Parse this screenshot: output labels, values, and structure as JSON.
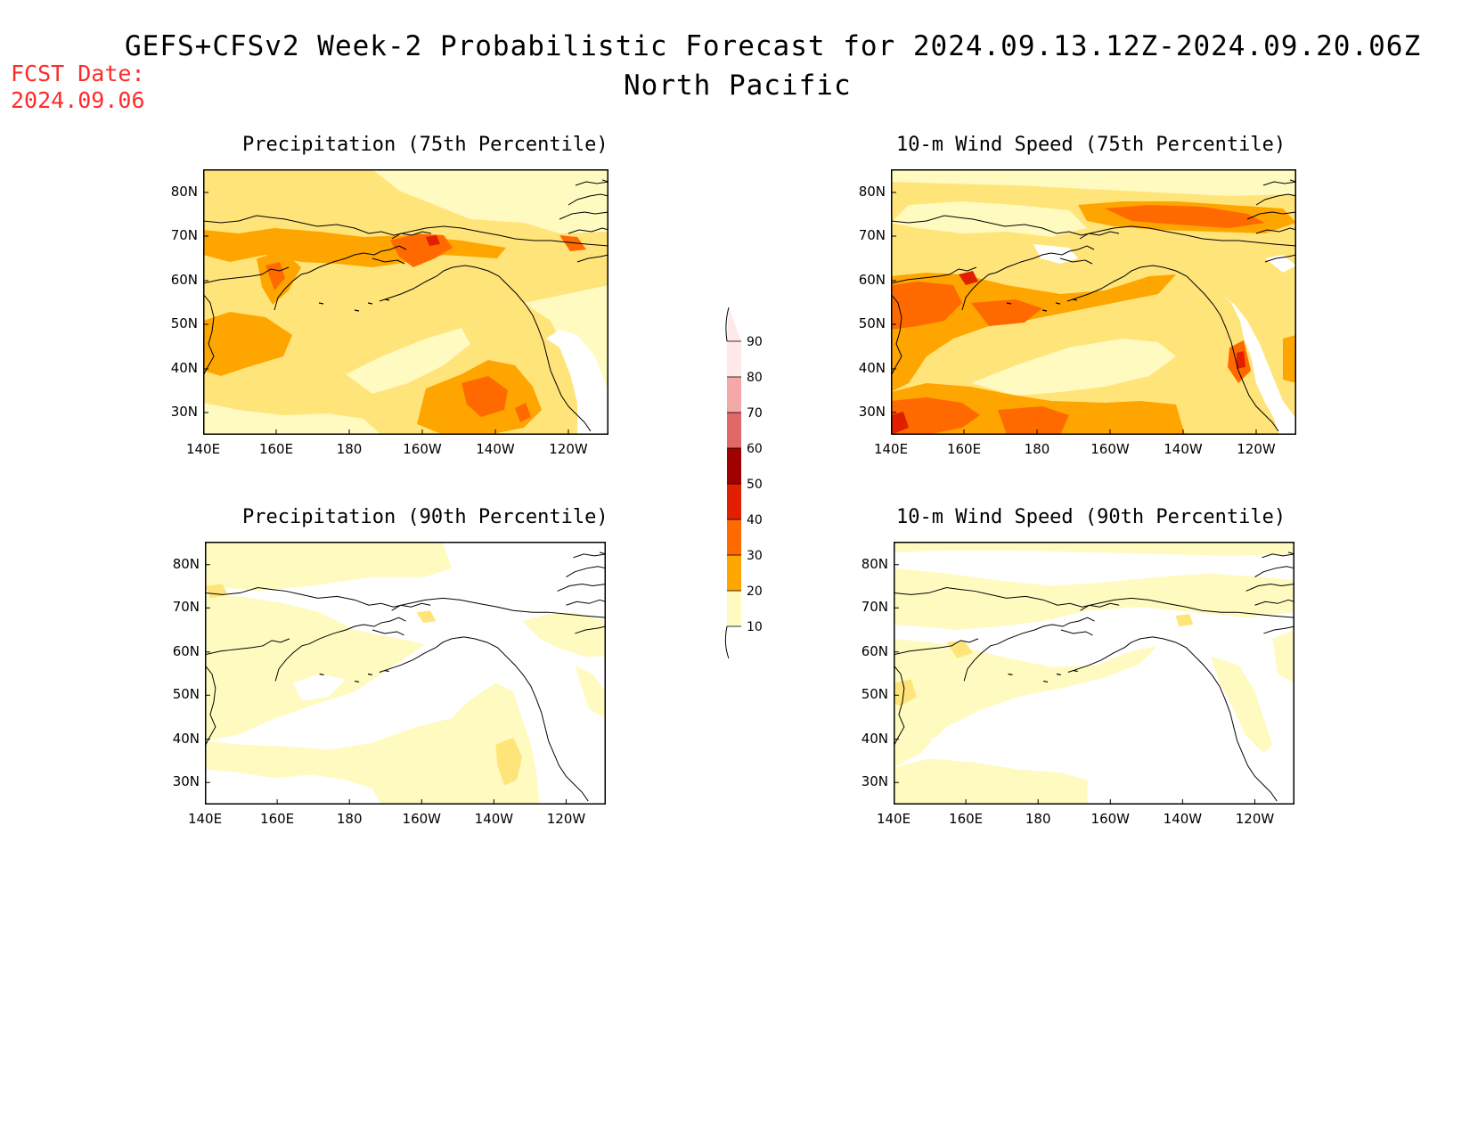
{
  "header": {
    "title": "GEFS+CFSv2 Week-2 Probabilistic Forecast for 2024.09.13.12Z-2024.09.20.06Z",
    "region": "North Pacific",
    "fcst_label": "FCST Date:",
    "fcst_date": "2024.09.06"
  },
  "colors": {
    "c10": "#fffac0",
    "c20": "#ffe47a",
    "c30": "#ffa500",
    "c40": "#ff6a00",
    "c50": "#e02000",
    "c60": "#a00000",
    "c70": "#e06868",
    "c80": "#f4a8a8",
    "c90": "#ffe8e8"
  },
  "colorbar": {
    "levels": [
      "10",
      "20",
      "30",
      "40",
      "50",
      "60",
      "70",
      "80",
      "90"
    ]
  },
  "axes": {
    "lon_ticks": [
      "140E",
      "160E",
      "180",
      "160W",
      "140W",
      "120W"
    ],
    "lat_ticks": [
      "80N",
      "70N",
      "60N",
      "50N",
      "40N",
      "30N"
    ]
  },
  "panels": [
    {
      "id": "precip75",
      "title": "Precipitation (75th Percentile)"
    },
    {
      "id": "wind75",
      "title": "10-m Wind Speed (75th Percentile)"
    },
    {
      "id": "precip90",
      "title": "Precipitation (90th Percentile)"
    },
    {
      "id": "wind90",
      "title": "10-m Wind Speed (90th Percentile)"
    }
  ]
}
